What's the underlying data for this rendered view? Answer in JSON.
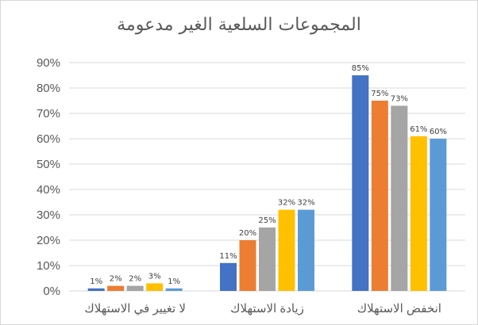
{
  "chart_data": {
    "type": "bar",
    "title": "المجموعات السلعية الغير مدعومة",
    "categories": [
      "لا تغيير في الاستهلاك",
      "زيادة الاستهلاك",
      "انخفض الاستهلاك"
    ],
    "series": [
      {
        "values": [
          1,
          11,
          85
        ],
        "color": "#4472c4"
      },
      {
        "values": [
          2,
          20,
          75
        ],
        "color": "#ed7d31"
      },
      {
        "values": [
          2,
          25,
          73
        ],
        "color": "#a5a5a5"
      },
      {
        "values": [
          3,
          32,
          61
        ],
        "color": "#ffc000"
      },
      {
        "values": [
          1,
          32,
          60
        ],
        "color": "#5b9bd5"
      }
    ],
    "data_labels": [
      [
        "1%",
        "11%",
        "85%"
      ],
      [
        "2%",
        "20%",
        "75%"
      ],
      [
        "2%",
        "25%",
        "73%"
      ],
      [
        "3%",
        "32%",
        "61%"
      ],
      [
        "1%",
        "32%",
        "60%"
      ]
    ],
    "y_ticks": [
      "0%",
      "10%",
      "20%",
      "30%",
      "40%",
      "50%",
      "60%",
      "70%",
      "80%",
      "90%"
    ],
    "ylim": [
      0,
      90
    ],
    "grid": true,
    "legend": "none"
  }
}
